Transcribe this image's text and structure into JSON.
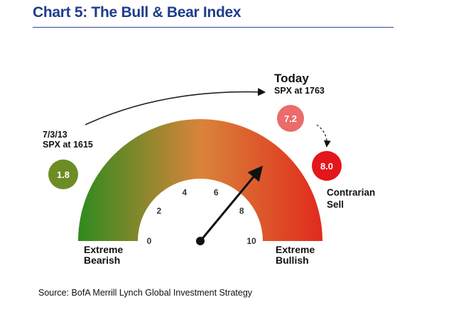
{
  "chart_data": {
    "type": "gauge",
    "title": "Chart 5: The Bull & Bear Index",
    "scale": {
      "min": 0,
      "max": 10,
      "ticks": [
        0,
        2,
        4,
        6,
        8,
        10
      ]
    },
    "end_labels": {
      "low": "Extreme Bearish",
      "high": "Extreme Bullish"
    },
    "colors": {
      "low": "#2e8b1e",
      "mid": "#d9843a",
      "high": "#e12a1c"
    },
    "pointer_value": 7.2,
    "readings": [
      {
        "label_date": "7/3/13",
        "label_spx": "SPX at 1615",
        "value": 1.8,
        "display": "1.8",
        "color": "#6d8d24"
      },
      {
        "label_date": "Today",
        "label_spx": "SPX at 1763",
        "value": 7.2,
        "display": "7.2",
        "color": "#ec6b6b"
      },
      {
        "label_date": "",
        "label_spx": "",
        "value": 8.0,
        "display": "8.0",
        "color": "#e4151b",
        "note_line1": "Contrarian",
        "note_line2": "Sell"
      }
    ],
    "source": "Source: BofA Merrill Lynch Global Investment Strategy"
  }
}
